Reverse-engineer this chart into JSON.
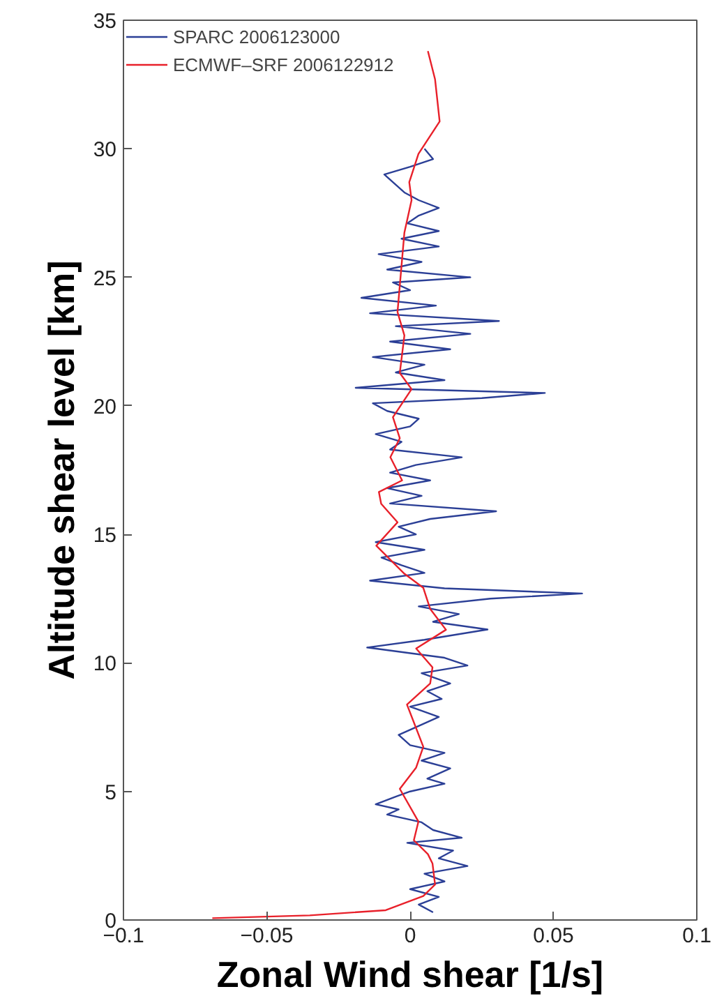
{
  "chart_data": {
    "type": "line",
    "xlabel": "Zonal Wind shear [1/s]",
    "ylabel": "Altitude shear level [km]",
    "xlim": [
      -0.1,
      0.1
    ],
    "ylim": [
      0,
      35
    ],
    "xticks": [
      {
        "value": -0.1,
        "label": "−0.1"
      },
      {
        "value": -0.05,
        "label": "−0.05"
      },
      0,
      0.05,
      0.1
    ],
    "yticks": [
      0,
      5,
      10,
      15,
      20,
      25,
      30,
      35
    ],
    "grid": false,
    "legend": "top left",
    "line_style": "solid",
    "marker": "none",
    "series": [
      {
        "name": "SPARC 2006123000",
        "color": "#2b3f96",
        "x": [
          0.008,
          0.003,
          0.01,
          0.0,
          0.012,
          0.005,
          0.02,
          0.01,
          0.015,
          -0.001,
          0.018,
          0.008,
          0.004,
          -0.008,
          -0.004,
          -0.012,
          -0.005,
          0.0,
          0.012,
          0.006,
          0.014,
          0.004,
          0.012,
          0.0,
          -0.004,
          0.002,
          0.01,
          0.0,
          0.011,
          0.006,
          0.014,
          0.004,
          0.02,
          0.012,
          -0.015,
          0.005,
          0.027,
          0.008,
          0.017,
          0.003,
          0.028,
          0.06,
          0.012,
          -0.014,
          0.005,
          -0.003,
          -0.01,
          0.005,
          -0.012,
          0.002,
          -0.004,
          0.007,
          0.03,
          -0.007,
          0.004,
          -0.008,
          0.007,
          -0.007,
          0.002,
          0.018,
          -0.007,
          -0.003,
          -0.012,
          0.0,
          0.003,
          -0.008,
          -0.013,
          0.025,
          0.047,
          -0.019,
          0.012,
          -0.005,
          0.005,
          -0.013,
          0.014,
          -0.007,
          0.021,
          -0.005,
          0.031,
          -0.014,
          0.009,
          -0.017,
          0.0,
          -0.006,
          0.021,
          -0.008,
          0.004,
          -0.011,
          0.01,
          -0.003,
          0.01,
          -0.001,
          0.003,
          0.01,
          0.003,
          -0.002,
          -0.005,
          -0.009,
          0.0,
          0.008,
          0.005
        ],
        "values": [
          0.3,
          0.6,
          0.9,
          1.2,
          1.5,
          1.8,
          2.1,
          2.4,
          2.7,
          3.0,
          3.2,
          3.5,
          3.8,
          4.1,
          4.3,
          4.5,
          4.8,
          5.0,
          5.3,
          5.5,
          5.9,
          6.2,
          6.5,
          6.8,
          7.2,
          7.5,
          7.9,
          8.3,
          8.6,
          8.9,
          9.2,
          9.6,
          9.9,
          10.2,
          10.6,
          10.9,
          11.3,
          11.6,
          11.9,
          12.2,
          12.5,
          12.7,
          12.9,
          13.2,
          13.5,
          13.8,
          14.1,
          14.4,
          14.7,
          15.0,
          15.3,
          15.6,
          15.9,
          16.2,
          16.5,
          16.8,
          17.1,
          17.4,
          17.7,
          18.0,
          18.3,
          18.6,
          18.9,
          19.2,
          19.5,
          19.8,
          20.1,
          20.3,
          20.5,
          20.7,
          21.0,
          21.3,
          21.6,
          21.9,
          22.2,
          22.5,
          22.8,
          23.1,
          23.3,
          23.6,
          23.9,
          24.2,
          24.5,
          24.8,
          25.0,
          25.3,
          25.6,
          25.9,
          26.2,
          26.5,
          26.8,
          27.1,
          27.4,
          27.7,
          28.0,
          28.3,
          28.6,
          29.0,
          29.3,
          29.6,
          30.0
        ]
      },
      {
        "name": "ECMWF–SRF 2006122912",
        "color": "#e8202a",
        "x": [
          -0.069,
          -0.035,
          -0.0085,
          0.0046,
          0.0087,
          0.0078,
          0.0062,
          0.0013,
          0.0029,
          -0.0036,
          0.0021,
          0.0046,
          -0.0011,
          0.007,
          0.0078,
          0.0021,
          0.0125,
          0.007,
          0.0046,
          -0.002,
          -0.0118,
          -0.0044,
          -0.0101,
          -0.0109,
          -0.0028,
          -0.0069,
          -0.0036,
          -0.006,
          0.0005,
          -0.0036,
          -0.002,
          -0.0044,
          -0.002,
          0.0005,
          -0.0003,
          0.0029,
          0.0103,
          0.0087,
          0.0062
        ],
        "values": [
          0.07,
          0.18,
          0.38,
          0.93,
          1.38,
          2.2,
          2.56,
          3.1,
          3.83,
          5.1,
          5.93,
          6.74,
          8.38,
          9.2,
          9.83,
          10.56,
          11.29,
          12.1,
          12.92,
          13.47,
          14.56,
          15.47,
          16.19,
          16.65,
          17.1,
          18.0,
          18.74,
          19.56,
          20.65,
          21.28,
          22.74,
          23.65,
          26.74,
          28.0,
          28.7,
          29.8,
          31.06,
          32.7,
          33.8
        ]
      }
    ]
  }
}
